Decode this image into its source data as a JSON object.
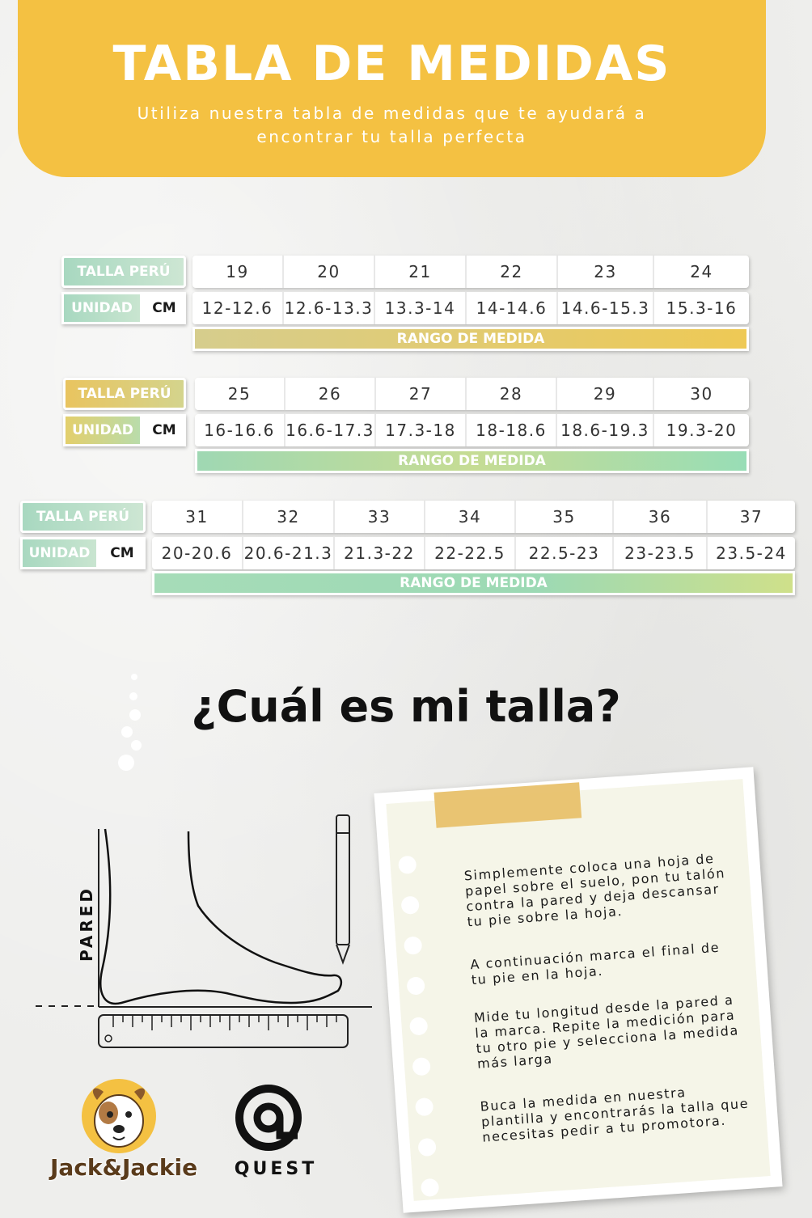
{
  "header": {
    "title": "TABLA DE MEDIDAS",
    "subtitle": "Utiliza nuestra tabla de medidas que te ayudará a encontrar tu talla perfecta"
  },
  "tables": [
    {
      "talla_label": "TALLA PERÚ",
      "unidad_label": "UNIDAD",
      "unit": "CM",
      "range_label": "RANGO DE MEDIDA",
      "sizes": [
        "19",
        "20",
        "21",
        "22",
        "23",
        "24"
      ],
      "ranges": [
        "12-12.6",
        "12.6-13.3",
        "13.3-14",
        "14-14.6",
        "14.6-15.3",
        "15.3-16"
      ]
    },
    {
      "talla_label": "TALLA PERÚ",
      "unidad_label": "UNIDAD",
      "unit": "CM",
      "range_label": "RANGO DE MEDIDA",
      "sizes": [
        "25",
        "26",
        "27",
        "28",
        "29",
        "30"
      ],
      "ranges": [
        "16-16.6",
        "16.6-17.3",
        "17.3-18",
        "18-18.6",
        "18.6-19.3",
        "19.3-20"
      ]
    },
    {
      "talla_label": "TALLA PERÚ",
      "unidad_label": "UNIDAD",
      "unit": "CM",
      "range_label": "RANGO DE MEDIDA",
      "sizes": [
        "31",
        "32",
        "33",
        "34",
        "35",
        "36",
        "37"
      ],
      "ranges": [
        "20-20.6",
        "20.6-21.3",
        "21.3-22",
        "22-22.5",
        "22.5-23",
        "23-23.5",
        "23.5-24"
      ]
    }
  ],
  "question": "¿Cuál es mi talla?",
  "illustration": {
    "wall_label": "PARED"
  },
  "instructions": [
    "Simplemente coloca una hoja de papel sobre el suelo, pon tu talón contra la pared y deja descansar tu pie sobre la hoja.",
    "A continuación marca el final de tu pie en la hoja.",
    "Mide tu longitud desde la pared a la marca. Repite la medición para tu otro pie y selecciona la medida más larga",
    "Buca la medida en nuestra plantilla y encontrarás la talla que necesitas pedir a tu promotora."
  ],
  "logos": {
    "brand1": "Jack&Jackie",
    "brand2": "QUEST"
  },
  "colors": {
    "header": "#f4c142",
    "mint": "#a8d8c0",
    "gold": "#eec955"
  }
}
